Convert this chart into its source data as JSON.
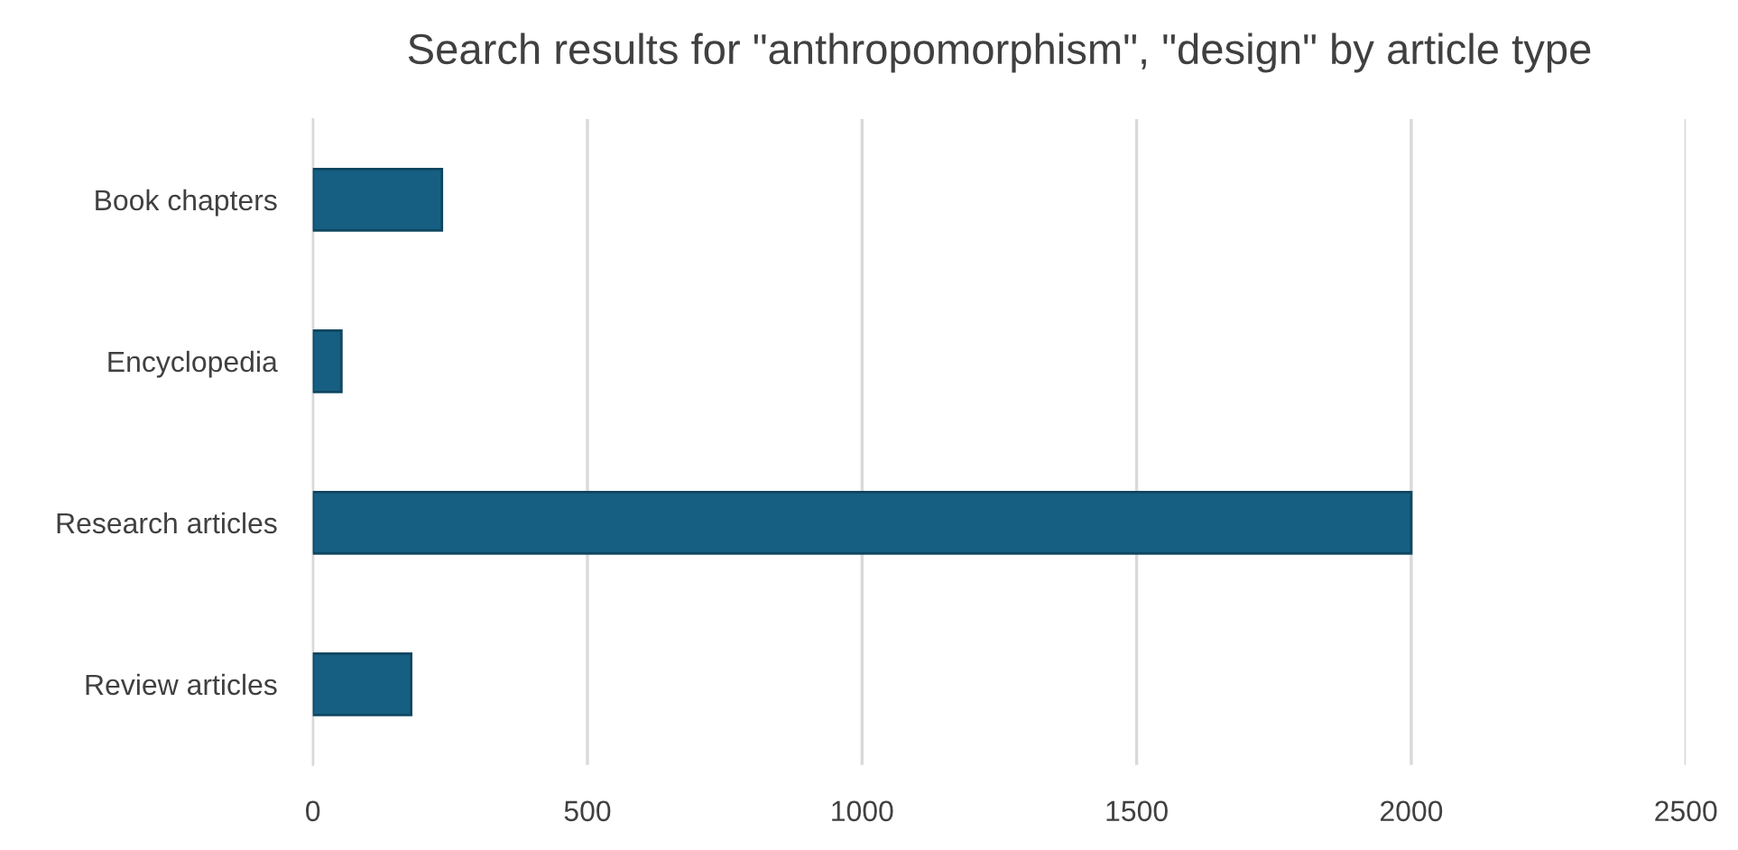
{
  "chart_data": {
    "type": "bar",
    "orientation": "horizontal",
    "title": "Search results for \"anthropomorphism\", \"design\" by article type",
    "categories": [
      "Book chapters",
      "Encyclopedia",
      "Research articles",
      "Review articles"
    ],
    "values": [
      235,
      52,
      2000,
      179
    ],
    "color": "#165f82",
    "xlim": [
      0,
      2500
    ],
    "xticks": [
      0,
      500,
      1000,
      1500,
      2000,
      2500
    ],
    "grid": "x",
    "legend": false
  }
}
